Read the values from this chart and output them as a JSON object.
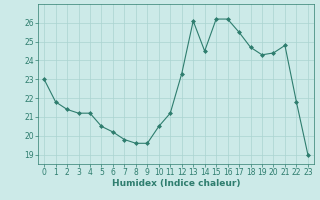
{
  "x": [
    0,
    1,
    2,
    3,
    4,
    5,
    6,
    7,
    8,
    9,
    10,
    11,
    12,
    13,
    14,
    15,
    16,
    17,
    18,
    19,
    20,
    21,
    22,
    23
  ],
  "y": [
    23.0,
    21.8,
    21.4,
    21.2,
    21.2,
    20.5,
    20.2,
    19.8,
    19.6,
    19.6,
    20.5,
    21.2,
    23.3,
    26.1,
    24.5,
    26.2,
    26.2,
    25.5,
    24.7,
    24.3,
    24.4,
    24.8,
    21.8,
    19.0
  ],
  "line_color": "#2e7d6e",
  "marker": "D",
  "marker_size": 2,
  "bg_color": "#cceae8",
  "grid_color": "#aad4d0",
  "axis_color": "#2e7d6e",
  "xlabel": "Humidex (Indice chaleur)",
  "xlim": [
    -0.5,
    23.5
  ],
  "ylim": [
    18.5,
    27
  ],
  "yticks": [
    19,
    20,
    21,
    22,
    23,
    24,
    25,
    26
  ],
  "xticks": [
    0,
    1,
    2,
    3,
    4,
    5,
    6,
    7,
    8,
    9,
    10,
    11,
    12,
    13,
    14,
    15,
    16,
    17,
    18,
    19,
    20,
    21,
    22,
    23
  ],
  "tick_fontsize": 5.5,
  "label_fontsize": 6.5
}
